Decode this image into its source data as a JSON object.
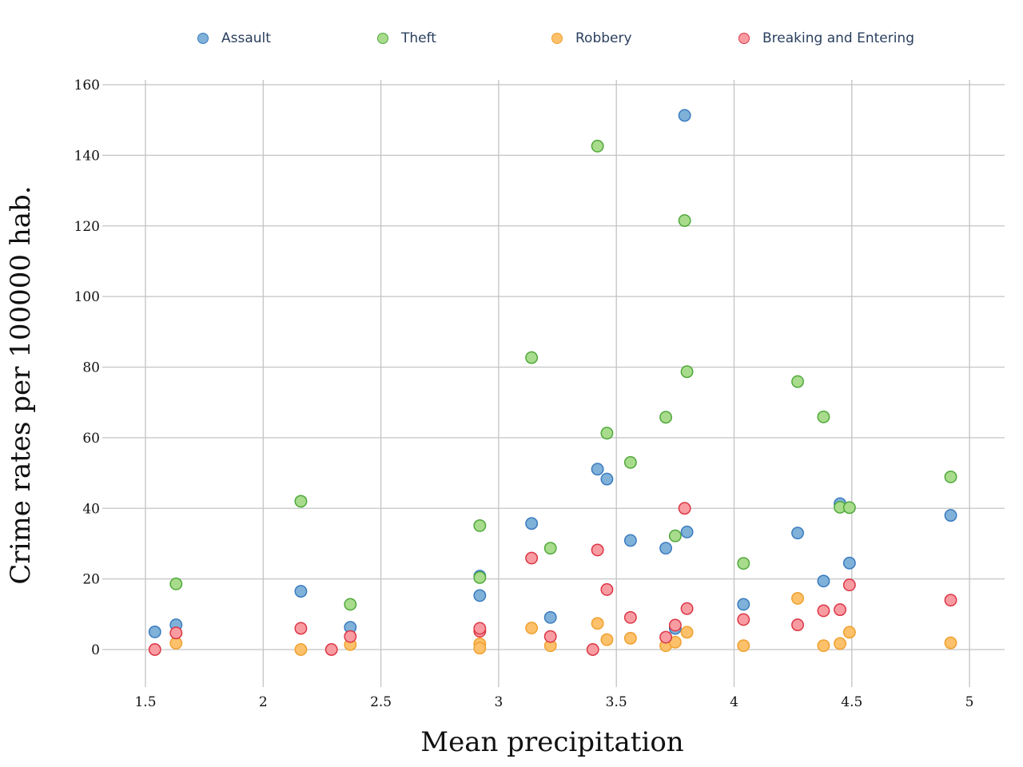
{
  "chart_data": {
    "type": "scatter",
    "title": "",
    "xlabel": "Mean precipitation",
    "ylabel": "Crime rates per 100000 hab.",
    "xlim": [
      1.3,
      5.15
    ],
    "ylim": [
      -10,
      162
    ],
    "xticks": [
      1.5,
      2,
      2.5,
      3,
      3.5,
      4,
      4.5,
      5
    ],
    "xtick_labels": [
      "1.5",
      "2",
      "2.5",
      "3",
      "3.5",
      "4",
      "4.5",
      "5"
    ],
    "yticks": [
      0,
      20,
      40,
      60,
      80,
      100,
      120,
      140,
      160
    ],
    "ytick_labels": [
      "0",
      "20",
      "40",
      "60",
      "80",
      "100",
      "120",
      "140",
      "160"
    ],
    "grid": true,
    "legend_position": "top",
    "series": [
      {
        "name": "Assault",
        "fill": "#7fb1d9",
        "stroke": "#3a7bbf",
        "points": [
          [
            1.54,
            5
          ],
          [
            1.63,
            7
          ],
          [
            2.16,
            16.5
          ],
          [
            2.37,
            6.3
          ],
          [
            2.92,
            15.3
          ],
          [
            2.92,
            20.8
          ],
          [
            3.14,
            35.7
          ],
          [
            3.22,
            9.1
          ],
          [
            3.42,
            51.1
          ],
          [
            3.46,
            48.3
          ],
          [
            3.56,
            30.9
          ],
          [
            3.71,
            28.7
          ],
          [
            3.75,
            6
          ],
          [
            3.79,
            151.3
          ],
          [
            3.8,
            33.3
          ],
          [
            4.04,
            12.8
          ],
          [
            4.27,
            33
          ],
          [
            4.38,
            19.4
          ],
          [
            4.45,
            41.3
          ],
          [
            4.49,
            24.5
          ],
          [
            4.92,
            38
          ]
        ]
      },
      {
        "name": "Theft",
        "fill": "#a8dc8c",
        "stroke": "#4fa83a",
        "points": [
          [
            1.63,
            18.6
          ],
          [
            2.16,
            42
          ],
          [
            2.37,
            12.8
          ],
          [
            2.92,
            35.1
          ],
          [
            2.92,
            20.4
          ],
          [
            3.14,
            82.7
          ],
          [
            3.22,
            28.7
          ],
          [
            3.42,
            142.6
          ],
          [
            3.46,
            61.3
          ],
          [
            3.56,
            53
          ],
          [
            3.71,
            65.8
          ],
          [
            3.75,
            32.2
          ],
          [
            3.79,
            121.5
          ],
          [
            3.8,
            78.7
          ],
          [
            4.04,
            24.4
          ],
          [
            4.27,
            75.9
          ],
          [
            4.38,
            65.9
          ],
          [
            4.45,
            40.3
          ],
          [
            4.49,
            40.2
          ],
          [
            4.92,
            48.9
          ]
        ]
      },
      {
        "name": "Robbery",
        "fill": "#fcc16a",
        "stroke": "#f0a030",
        "points": [
          [
            1.63,
            1.8
          ],
          [
            2.16,
            0
          ],
          [
            2.37,
            1.4
          ],
          [
            2.92,
            1.6
          ],
          [
            2.92,
            0.4
          ],
          [
            3.14,
            6.1
          ],
          [
            3.22,
            1.1
          ],
          [
            3.42,
            7.4
          ],
          [
            3.46,
            2.8
          ],
          [
            3.56,
            3.2
          ],
          [
            3.71,
            1.1
          ],
          [
            3.75,
            2.1
          ],
          [
            3.8,
            4.9
          ],
          [
            4.04,
            1.1
          ],
          [
            4.27,
            14.5
          ],
          [
            4.38,
            1.1
          ],
          [
            4.45,
            1.7
          ],
          [
            4.49,
            4.9
          ],
          [
            4.92,
            1.9
          ]
        ]
      },
      {
        "name": "Breaking and Entering",
        "fill": "#f89ca2",
        "stroke": "#dc3545",
        "points": [
          [
            1.54,
            0
          ],
          [
            1.63,
            4.7
          ],
          [
            2.16,
            6
          ],
          [
            2.29,
            0
          ],
          [
            2.37,
            3.7
          ],
          [
            2.92,
            5.2
          ],
          [
            2.92,
            6
          ],
          [
            3.14,
            25.9
          ],
          [
            3.22,
            3.7
          ],
          [
            3.4,
            0
          ],
          [
            3.42,
            28.2
          ],
          [
            3.46,
            17
          ],
          [
            3.56,
            9.1
          ],
          [
            3.71,
            3.5
          ],
          [
            3.75,
            6.9
          ],
          [
            3.79,
            40
          ],
          [
            3.8,
            11.6
          ],
          [
            4.04,
            8.5
          ],
          [
            4.27,
            7
          ],
          [
            4.38,
            11
          ],
          [
            4.45,
            11.3
          ],
          [
            4.49,
            18.3
          ],
          [
            4.92,
            14
          ]
        ]
      }
    ]
  }
}
